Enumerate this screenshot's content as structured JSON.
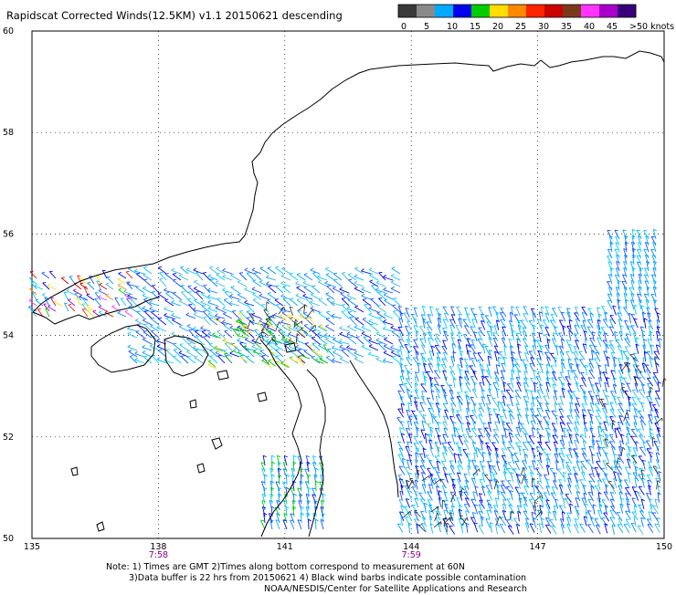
{
  "title": "Rapidscat Corrected Winds(12.5KM) v1.1 20150621 descending",
  "colorbar": {
    "labels": [
      "0",
      "5",
      "10",
      "15",
      "20",
      "25",
      "30",
      "35",
      "40",
      "45",
      ">50 knots"
    ],
    "colors": [
      "#3a3a3a",
      "#8a8a8a",
      "#00aaff",
      "#0000ee",
      "#00cc00",
      "#ffdd00",
      "#ff8800",
      "#ff2200",
      "#cc0000",
      "#7a3a1a",
      "#ff33ff",
      "#aa00cc",
      "#3a007a"
    ]
  },
  "map": {
    "lon_range": [
      135,
      150
    ],
    "lat_range": [
      50,
      60
    ],
    "lon_ticks": [
      "135",
      "138",
      "141",
      "144",
      "147",
      "150"
    ],
    "lat_ticks": [
      "50",
      "52",
      "54",
      "56",
      "58",
      "60"
    ],
    "time_labels": [
      {
        "lon": 138,
        "text": "7:58"
      },
      {
        "lon": 144,
        "text": "7:59"
      }
    ],
    "time_color": "#880088"
  },
  "notes": {
    "line1": "Note: 1) Times are GMT 2)Times along bottom correspond to measurement at 60N",
    "line2": "3)Data buffer is 22 hrs from 20150621 4) Black wind barbs indicate possible contamination",
    "line3": "NOAA/NESDIS/Center for Satellite Applications and Research"
  }
}
